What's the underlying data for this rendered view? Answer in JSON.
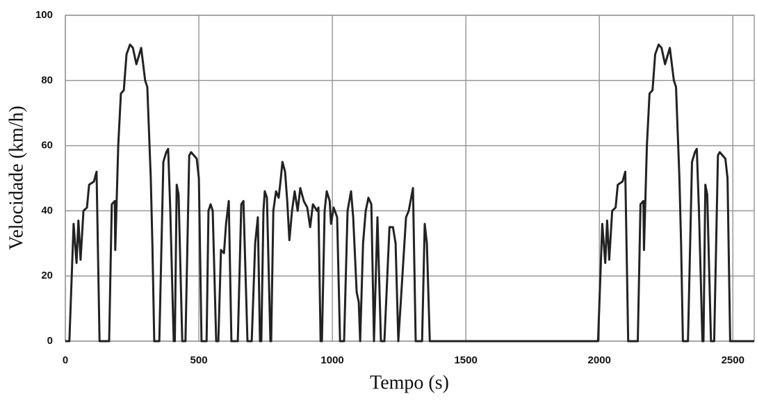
{
  "chart_data": {
    "type": "line",
    "xlabel": "Tempo (s)",
    "ylabel": "Velocidade (km/h)",
    "x": [
      0,
      15,
      31,
      42,
      49,
      57,
      68,
      81,
      89,
      107,
      117,
      128,
      164,
      174,
      185,
      187,
      198,
      208,
      219,
      229,
      242,
      253,
      266,
      284,
      299,
      307,
      320,
      326,
      333,
      352,
      367,
      378,
      385,
      393,
      406,
      410,
      417,
      424,
      438,
      450,
      464,
      471,
      492,
      500,
      510,
      529,
      536,
      544,
      552,
      565,
      573,
      583,
      594,
      602,
      612,
      622,
      646,
      659,
      667,
      682,
      698,
      711,
      721,
      729,
      734,
      742,
      747,
      755,
      768,
      771,
      779,
      789,
      799,
      807,
      813,
      823,
      831,
      839,
      849,
      859,
      870,
      880,
      893,
      906,
      917,
      927,
      943,
      948,
      956,
      961,
      971,
      979,
      990,
      995,
      1005,
      1018,
      1029,
      1044,
      1057,
      1070,
      1078,
      1091,
      1099,
      1104,
      1115,
      1125,
      1135,
      1146,
      1156,
      1169,
      1182,
      1195,
      1214,
      1227,
      1237,
      1247,
      1260,
      1276,
      1286,
      1302,
      1312,
      1336,
      1346,
      1354,
      1365,
      1995,
      2011,
      2022,
      2029,
      2037,
      2048,
      2061,
      2069,
      2087,
      2097,
      2108,
      2144,
      2154,
      2165,
      2167,
      2178,
      2188,
      2199,
      2209,
      2222,
      2233,
      2246,
      2264,
      2279,
      2287,
      2300,
      2306,
      2313,
      2332,
      2347,
      2358,
      2365,
      2373,
      2386,
      2390,
      2397,
      2404,
      2418,
      2430,
      2444,
      2451,
      2472,
      2480,
      2490,
      2580
    ],
    "series": [
      {
        "color": "#222222",
        "values": [
          0,
          0,
          36,
          24,
          37,
          25,
          40,
          41,
          48,
          49,
          52,
          0,
          0,
          42,
          43,
          28,
          60,
          76,
          77,
          88,
          91,
          90,
          85,
          90,
          80,
          78,
          50,
          30,
          0,
          0,
          55,
          58,
          59,
          40,
          0,
          0,
          48,
          45,
          0,
          0,
          57,
          58,
          56,
          50,
          0,
          0,
          40,
          42,
          40,
          0,
          0,
          28,
          27,
          36,
          43,
          0,
          0,
          42,
          43,
          0,
          0,
          30,
          38,
          0,
          0,
          40,
          46,
          44,
          0,
          0,
          40,
          46,
          44,
          50,
          55,
          52,
          43,
          31,
          40,
          46,
          40,
          47,
          43,
          41,
          35,
          42,
          40,
          41,
          0,
          0,
          40,
          46,
          43,
          36,
          41,
          38,
          0,
          0,
          40,
          46,
          38,
          15,
          12,
          0,
          30,
          40,
          44,
          42,
          0,
          38,
          0,
          0,
          35,
          35,
          30,
          0,
          17,
          38,
          40,
          47,
          0,
          0,
          36,
          30,
          0,
          0,
          36,
          24,
          37,
          25,
          40,
          41,
          48,
          49,
          52,
          0,
          0,
          42,
          43,
          28,
          60,
          76,
          77,
          88,
          91,
          90,
          85,
          90,
          80,
          78,
          50,
          30,
          0,
          0,
          55,
          58,
          59,
          40,
          0,
          0,
          48,
          45,
          0,
          0,
          57,
          58,
          56,
          50,
          0,
          0
        ]
      }
    ],
    "xlim": [
      0,
      2580
    ],
    "xticks": [
      0,
      500,
      1000,
      1500,
      2000,
      2500
    ],
    "ylim": [
      0,
      100
    ],
    "yticks": [
      0,
      20,
      40,
      60,
      80,
      100
    ],
    "grid": true
  }
}
